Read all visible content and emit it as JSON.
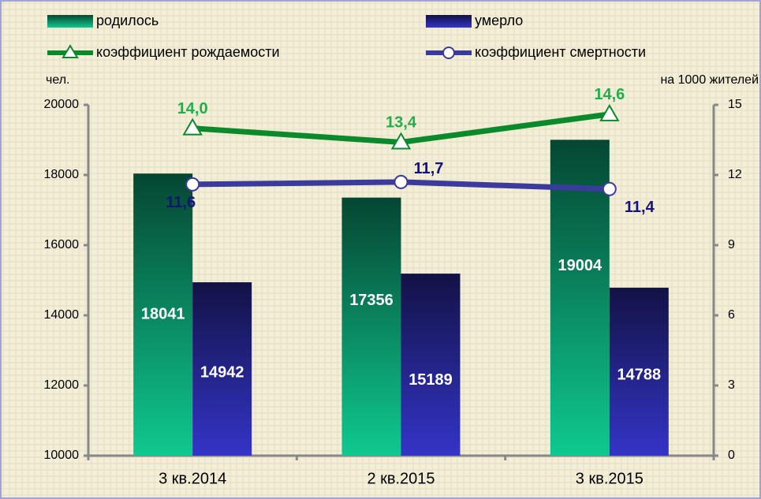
{
  "chart_data": {
    "type": "bar",
    "y_label": "чел.",
    "y2_label": "на 1000 жителей",
    "categories": [
      "3 кв.2014",
      "2 кв.2015",
      "3 кв.2015"
    ],
    "series": [
      {
        "name": "родилось",
        "type": "bar",
        "color": "#0fc98f",
        "values": [
          18041,
          17356,
          19004
        ]
      },
      {
        "name": "умерло",
        "type": "bar",
        "color": "#3434c8",
        "values": [
          14942,
          15189,
          14788
        ]
      },
      {
        "name": "коэффициент рождаемости",
        "type": "line",
        "axis": "y2",
        "color": "#0b8a2c",
        "label_color": "#1fae4a",
        "marker": "triangle",
        "values": [
          14.0,
          13.4,
          14.6
        ],
        "value_labels": [
          "14,0",
          "13,4",
          "14,6"
        ]
      },
      {
        "name": "коэффициент смертности",
        "type": "line",
        "axis": "y2",
        "color": "#3b3b9e",
        "label_color": "#13137a",
        "marker": "circle",
        "values": [
          11.6,
          11.7,
          11.4
        ],
        "value_labels": [
          "11,6",
          "11,7",
          "11,4"
        ]
      }
    ],
    "ylim": [
      10000,
      20000
    ],
    "yticks": [
      10000,
      12000,
      14000,
      16000,
      18000,
      20000
    ],
    "y2lim": [
      0,
      15
    ],
    "y2ticks": [
      0,
      3,
      6,
      9,
      12,
      15
    ]
  }
}
